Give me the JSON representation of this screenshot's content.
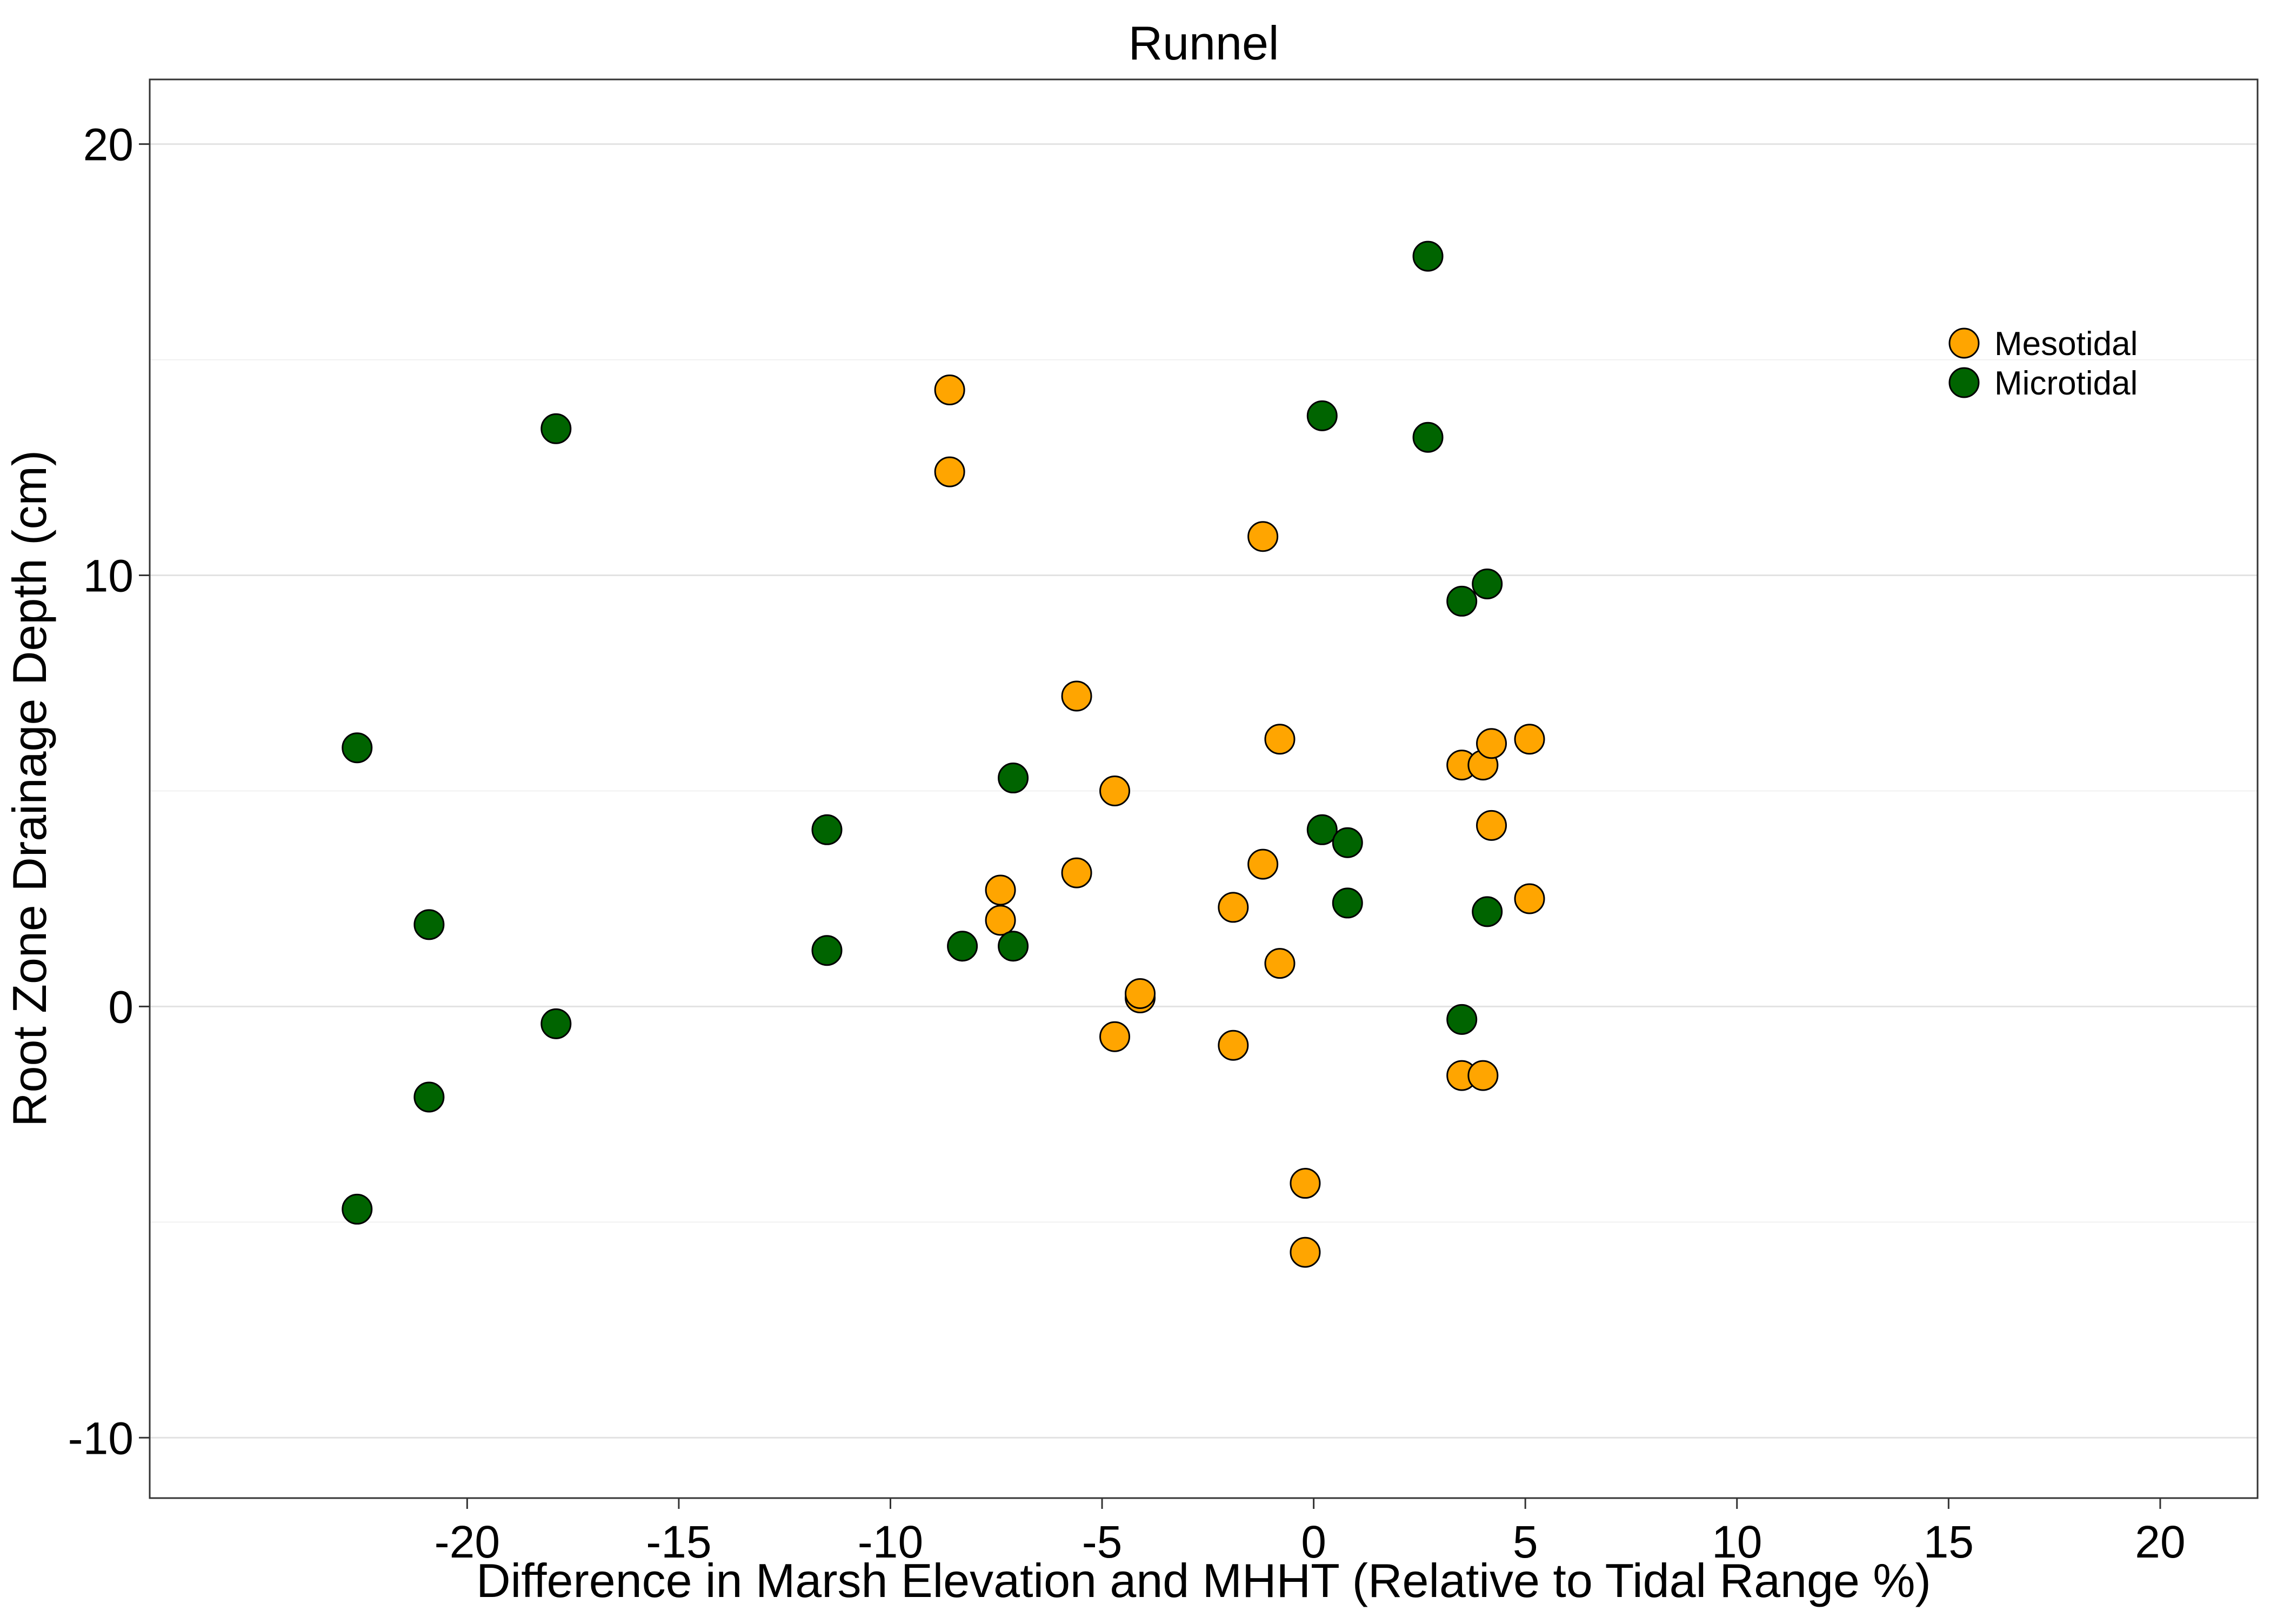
{
  "chart_data": {
    "type": "scatter",
    "title": "Runnel",
    "xlabel": "Difference in Marsh Elevation and MHHT (Relative to Tidal Range %)",
    "ylabel": "Root Zone Drainage Depth (cm)",
    "xlim": [
      -27.5,
      22.3
    ],
    "ylim": [
      -11.4,
      21.5
    ],
    "x_ticks": [
      -20,
      -15,
      -10,
      -5,
      0,
      5,
      10,
      15,
      20
    ],
    "x_tick_labels": [
      "-20",
      "-15",
      "-10",
      "-5",
      "0",
      "5",
      "10",
      "15",
      "20"
    ],
    "y_ticks": [
      -10,
      0,
      10,
      20
    ],
    "y_tick_labels": [
      "-10",
      "0",
      "10",
      "20"
    ],
    "y_minor_grid": [
      -5,
      5,
      15
    ],
    "grid": "horizontal",
    "legend_position": "right",
    "series": [
      {
        "name": "Mesotidal",
        "color": "#FFA500",
        "points": [
          {
            "x": -8.6,
            "y": 14.3
          },
          {
            "x": -8.6,
            "y": 12.4
          },
          {
            "x": -1.2,
            "y": 10.9
          },
          {
            "x": -5.6,
            "y": 7.2
          },
          {
            "x": -0.8,
            "y": 6.2
          },
          {
            "x": -4.7,
            "y": 5.0
          },
          {
            "x": -7.4,
            "y": 2.7
          },
          {
            "x": -5.6,
            "y": 3.1
          },
          {
            "x": -7.4,
            "y": 2.0
          },
          {
            "x": -1.2,
            "y": 3.3
          },
          {
            "x": -1.9,
            "y": 2.3
          },
          {
            "x": -0.8,
            "y": 1.0
          },
          {
            "x": -4.1,
            "y": 0.2
          },
          {
            "x": -4.1,
            "y": 0.3
          },
          {
            "x": -4.7,
            "y": -0.7
          },
          {
            "x": -1.9,
            "y": -0.9
          },
          {
            "x": -0.2,
            "y": -4.1
          },
          {
            "x": -0.2,
            "y": -5.7
          },
          {
            "x": 3.5,
            "y": 5.6
          },
          {
            "x": 4.0,
            "y": 5.6
          },
          {
            "x": 4.2,
            "y": 6.1
          },
          {
            "x": 5.1,
            "y": 6.2
          },
          {
            "x": 4.2,
            "y": 4.2
          },
          {
            "x": 5.1,
            "y": 2.5
          },
          {
            "x": 3.5,
            "y": -1.6
          },
          {
            "x": 4.0,
            "y": -1.6
          }
        ]
      },
      {
        "name": "Microtidal",
        "color": "#006400",
        "points": [
          {
            "x": -22.6,
            "y": 6.0
          },
          {
            "x": -22.6,
            "y": -4.7
          },
          {
            "x": -20.9,
            "y": 1.9
          },
          {
            "x": -20.9,
            "y": -2.1
          },
          {
            "x": -17.9,
            "y": 13.4
          },
          {
            "x": -17.9,
            "y": -0.4
          },
          {
            "x": -11.5,
            "y": 4.1
          },
          {
            "x": -11.5,
            "y": 1.3
          },
          {
            "x": -8.3,
            "y": 1.4
          },
          {
            "x": -7.1,
            "y": 5.3
          },
          {
            "x": -7.1,
            "y": 1.4
          },
          {
            "x": 0.2,
            "y": 13.7
          },
          {
            "x": 0.2,
            "y": 4.1
          },
          {
            "x": 0.8,
            "y": 3.8
          },
          {
            "x": 0.8,
            "y": 2.4
          },
          {
            "x": 2.7,
            "y": 17.4
          },
          {
            "x": 2.7,
            "y": 13.2
          },
          {
            "x": 3.5,
            "y": 9.4
          },
          {
            "x": 4.1,
            "y": 9.8
          },
          {
            "x": 4.1,
            "y": 2.2
          },
          {
            "x": 3.5,
            "y": -0.3
          }
        ]
      }
    ]
  }
}
